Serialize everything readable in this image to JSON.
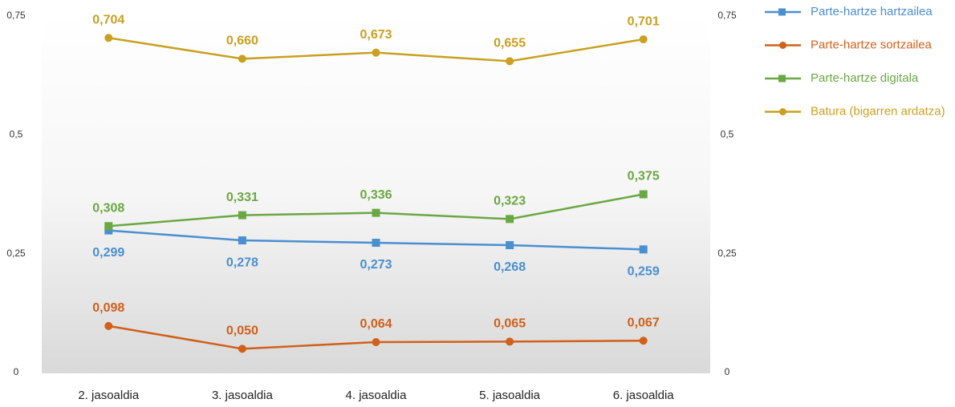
{
  "chart_data": {
    "type": "line",
    "categories": [
      "2. jasoaldia",
      "3. jasoaldia",
      "4. jasoaldia",
      "5. jasoaldia",
      "6. jasoaldia"
    ],
    "ylim": [
      0,
      0.75
    ],
    "yticks": [
      0,
      {
        "value": 0.25,
        "label": "0,25"
      },
      {
        "value": 0.5,
        "label": "0,5"
      },
      {
        "value": 0.75,
        "label": "0,75"
      }
    ],
    "y2lim": [
      0,
      0.75
    ],
    "y2ticks": [
      0,
      {
        "value": 0.25,
        "label": "0,25"
      },
      {
        "value": 0.5,
        "label": "0,5"
      },
      {
        "value": 0.75,
        "label": "0,75"
      }
    ],
    "legend": "right",
    "series": [
      {
        "name": "Parte-hartze hartzailea",
        "color": "#4a8fd0",
        "marker": "square",
        "label_position": "below",
        "values": [
          0.299,
          0.278,
          0.273,
          0.268,
          0.259
        ],
        "value_labels": [
          "0,299",
          "0,278",
          "0,273",
          "0,268",
          "0,259"
        ]
      },
      {
        "name": "Parte-hartze sortzailea",
        "color": "#d0601a",
        "marker": "circle",
        "label_position": "above",
        "values": [
          0.098,
          0.05,
          0.064,
          0.065,
          0.067
        ],
        "value_labels": [
          "0,098",
          "0,050",
          "0,064",
          "0,065",
          "0,067"
        ]
      },
      {
        "name": "Parte-hartze digitala",
        "color": "#6aa842",
        "marker": "square",
        "label_position": "above",
        "values": [
          0.308,
          0.331,
          0.336,
          0.323,
          0.375
        ],
        "value_labels": [
          "0,308",
          "0,331",
          "0,336",
          "0,323",
          "0,375"
        ]
      },
      {
        "name": "Batura (bigarren ardatza)",
        "color": "#c9a020",
        "marker": "circle",
        "label_position": "above",
        "axis": "y2",
        "values": [
          0.704,
          0.66,
          0.673,
          0.655,
          0.701
        ],
        "value_labels": [
          "0,704",
          "0,660",
          "0,673",
          "0,655",
          "0,701"
        ]
      }
    ]
  }
}
